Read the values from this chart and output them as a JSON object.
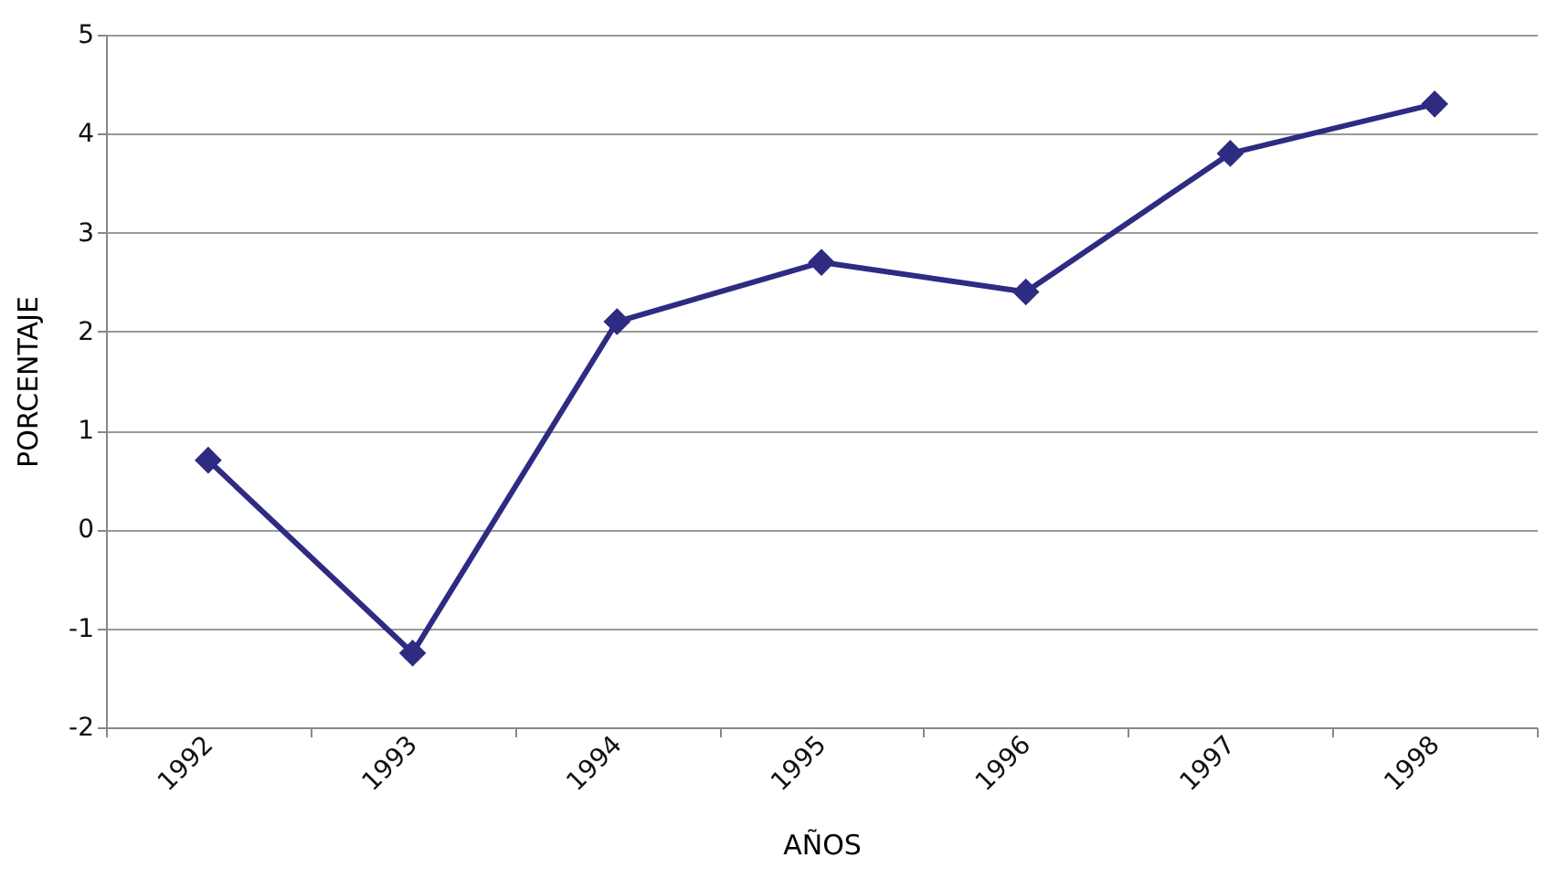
{
  "chart_data": {
    "type": "line",
    "xlabel": "AÑOS",
    "ylabel": "PORCENTAJE",
    "categories": [
      "1992",
      "1993",
      "1994",
      "1995",
      "1996",
      "1997",
      "1998"
    ],
    "series": [
      {
        "color": "#2e2b82",
        "values": [
          0.7,
          -1.25,
          2.1,
          2.7,
          2.4,
          3.8,
          4.3
        ]
      }
    ],
    "ylim": [
      -2,
      5
    ],
    "yticks": [
      -2,
      -1,
      0,
      1,
      2,
      3,
      4,
      5
    ],
    "grid": "y",
    "marker": "diamond",
    "line_style": "solid"
  }
}
